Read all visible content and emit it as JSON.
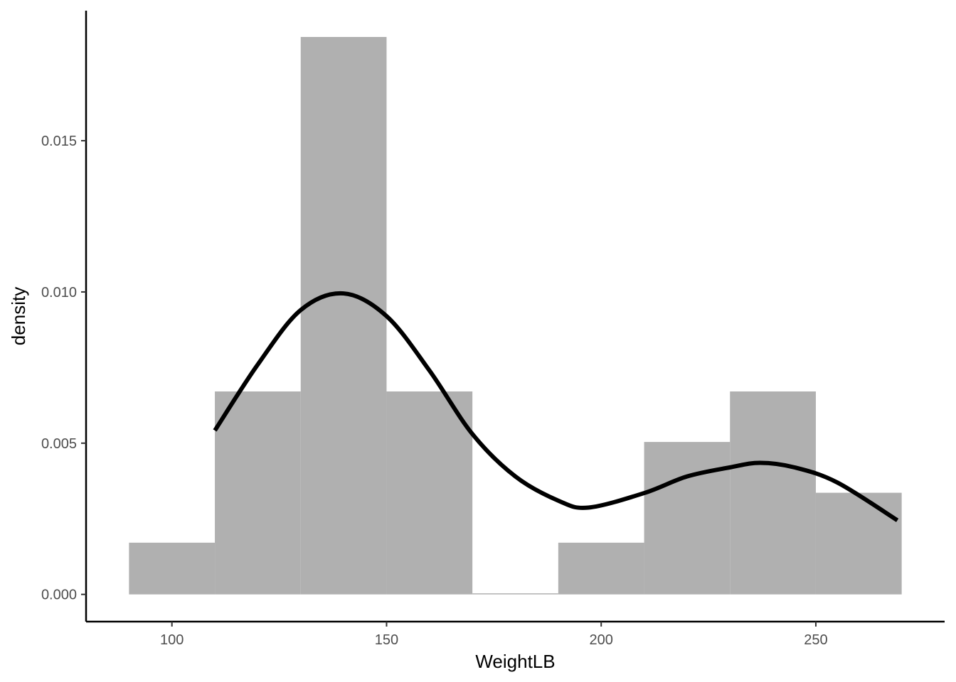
{
  "chart_data": {
    "type": "bar",
    "subtype": "histogram with density curve",
    "title": "",
    "xlabel": "WeightLB",
    "ylabel": "density",
    "xlim": [
      80,
      280
    ],
    "ylim": [
      -0.0009,
      0.0193
    ],
    "x_ticks": [
      100,
      150,
      200,
      250
    ],
    "x_tick_labels": [
      "100",
      "150",
      "200",
      "250"
    ],
    "y_ticks": [
      0.0,
      0.005,
      0.01,
      0.015
    ],
    "y_tick_labels": [
      "0.000",
      "0.005",
      "0.010",
      "0.015"
    ],
    "grid": false,
    "bins": [
      {
        "x_min": 90,
        "x_max": 110,
        "density": 0.00171
      },
      {
        "x_min": 110,
        "x_max": 130,
        "density": 0.00671
      },
      {
        "x_min": 130,
        "x_max": 150,
        "density": 0.01843
      },
      {
        "x_min": 150,
        "x_max": 170,
        "density": 0.00671
      },
      {
        "x_min": 170,
        "x_max": 190,
        "density": 0.0
      },
      {
        "x_min": 190,
        "x_max": 210,
        "density": 0.00171
      },
      {
        "x_min": 210,
        "x_max": 230,
        "density": 0.00504
      },
      {
        "x_min": 230,
        "x_max": 250,
        "density": 0.00671
      },
      {
        "x_min": 250,
        "x_max": 270,
        "density": 0.00336
      }
    ],
    "density_curve": {
      "x": [
        110,
        120,
        130,
        140,
        150,
        160,
        170,
        180,
        190,
        197,
        210,
        220,
        230,
        237,
        245,
        255,
        269
      ],
      "y": [
        0.00542,
        0.0076,
        0.0094,
        0.00995,
        0.0092,
        0.0074,
        0.0053,
        0.0039,
        0.0031,
        0.00287,
        0.00335,
        0.0039,
        0.0042,
        0.00435,
        0.0042,
        0.0037,
        0.00245
      ]
    },
    "colors": {
      "bar_fill": "#b0b0b0",
      "curve": "#000000",
      "axis": "#000000",
      "tick_label": "#4d4d4d"
    }
  }
}
